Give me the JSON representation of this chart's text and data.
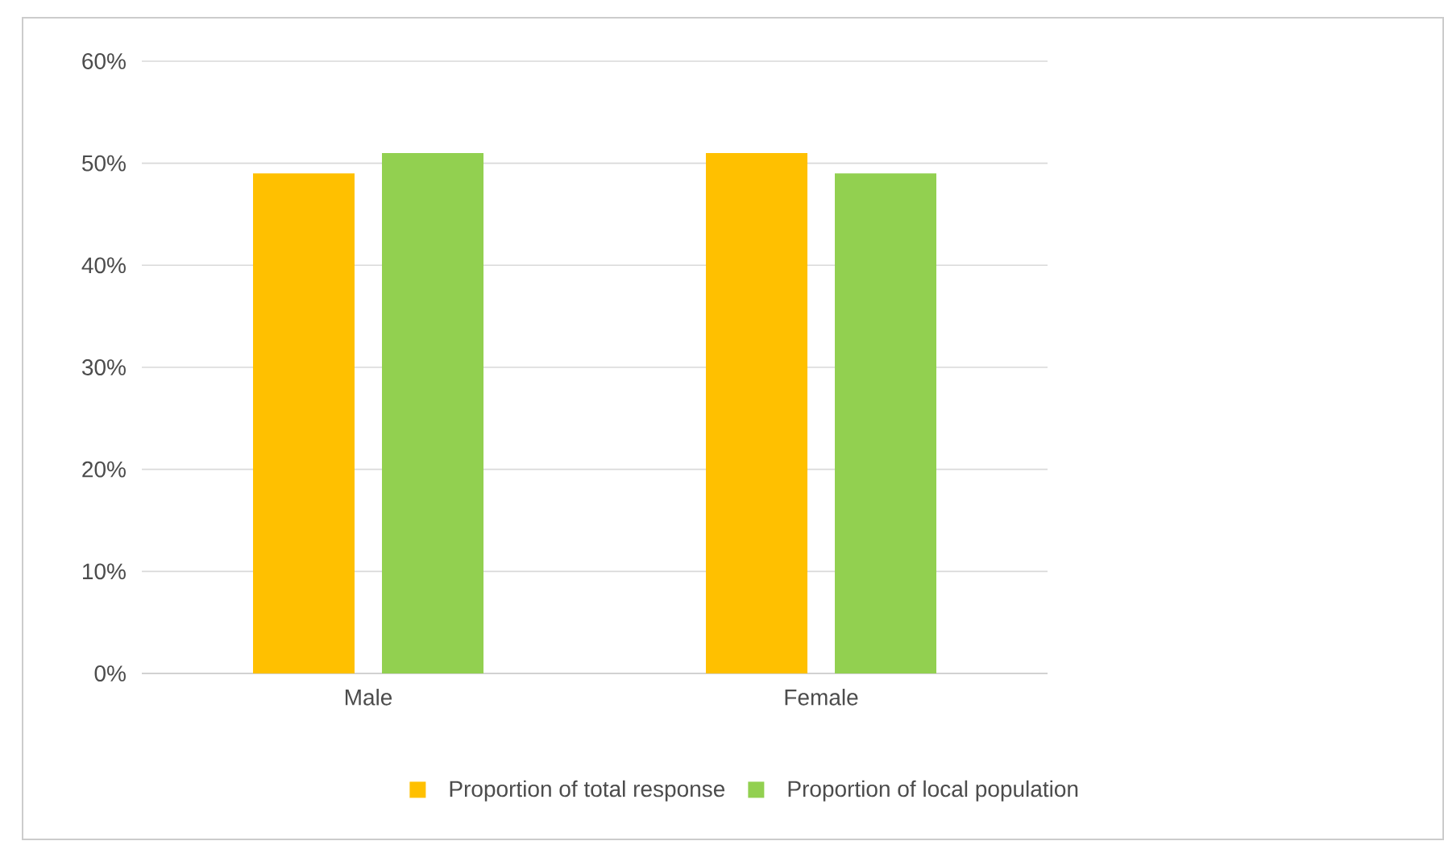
{
  "chart_data": {
    "type": "bar",
    "categories": [
      "Male",
      "Female"
    ],
    "series": [
      {
        "name": "Proportion of total response",
        "color": "#ffc000",
        "values": [
          49,
          51
        ]
      },
      {
        "name": "Proportion of local population",
        "color": "#92d050",
        "values": [
          51,
          49
        ]
      }
    ],
    "ylim": [
      0,
      60
    ],
    "yticks": [
      {
        "value": 0,
        "label": "0%"
      },
      {
        "value": 10,
        "label": "10%"
      },
      {
        "value": 20,
        "label": "20%"
      },
      {
        "value": 30,
        "label": "30%"
      },
      {
        "value": 40,
        "label": "40%"
      },
      {
        "value": 50,
        "label": "50%"
      },
      {
        "value": 60,
        "label": "60%"
      }
    ],
    "grid": "y",
    "legend": "bottom"
  }
}
